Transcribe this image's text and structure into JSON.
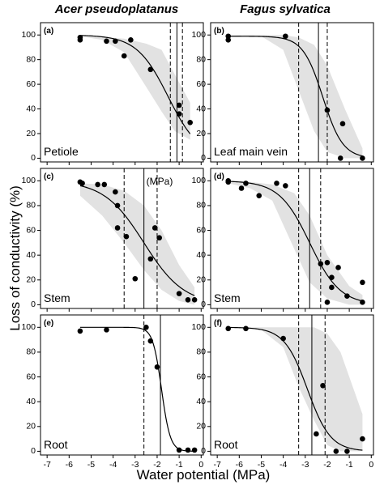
{
  "figure": {
    "column_titles": [
      "Acer pseudoplatanus",
      "Fagus sylvatica"
    ],
    "ylabel": "Loss of conductivity (%)",
    "xlabel": "Water potential (MPa)"
  },
  "chart_data": [
    {
      "id": "a",
      "type": "scatter",
      "letter": "(a)",
      "organ": "Petiole",
      "xlim": [
        -7.3,
        0.1
      ],
      "ylim": [
        -3,
        110
      ],
      "x_ticks": [
        -7,
        -6,
        -5,
        -4,
        -3,
        -2,
        -1,
        0
      ],
      "y_ticks": [
        0,
        20,
        40,
        60,
        80,
        100
      ],
      "points": [
        [
          -5.5,
          98
        ],
        [
          -5.5,
          96
        ],
        [
          -4.3,
          95
        ],
        [
          -3.9,
          95
        ],
        [
          -3.5,
          83
        ],
        [
          -3.2,
          96
        ],
        [
          -2.3,
          72
        ],
        [
          -1.0,
          43
        ],
        [
          -1.0,
          36
        ],
        [
          -0.5,
          29
        ]
      ],
      "fit": {
        "p50": -1.5,
        "slope": 1.4,
        "max": 100
      },
      "fit_range": [
        -5.5,
        -0.5
      ],
      "band": [
        [
          -5.5,
          99,
          99
        ],
        [
          -4.5,
          98,
          96
        ],
        [
          -3.5,
          97,
          86
        ],
        [
          -2.5,
          93,
          58
        ],
        [
          -1.8,
          88,
          38
        ],
        [
          -1.2,
          68,
          22
        ],
        [
          -0.5,
          45,
          15
        ]
      ],
      "vline_solid": -1.1,
      "vlines_dashed": [
        -1.4,
        -0.85
      ],
      "annotation": null
    },
    {
      "id": "b",
      "type": "scatter",
      "letter": "(b)",
      "organ": "Leaf main vein",
      "xlim": [
        -7.3,
        0.1
      ],
      "ylim": [
        -3,
        110
      ],
      "x_ticks": [
        -7,
        -6,
        -5,
        -4,
        -3,
        -2,
        -1,
        0
      ],
      "y_ticks": [
        0,
        20,
        40,
        60,
        80,
        100
      ],
      "points": [
        [
          -6.5,
          99
        ],
        [
          -6.5,
          96
        ],
        [
          -3.9,
          99
        ],
        [
          -2.0,
          39
        ],
        [
          -1.3,
          28
        ],
        [
          -1.4,
          0
        ],
        [
          -0.4,
          0
        ]
      ],
      "fit": {
        "p50": -2.2,
        "slope": 2.2,
        "max": 99
      },
      "fit_range": [
        -6.5,
        -0.4
      ],
      "band": [
        [
          -6.5,
          100,
          100
        ],
        [
          -5.0,
          100,
          99
        ],
        [
          -4.0,
          100,
          88
        ],
        [
          -3.3,
          98,
          55
        ],
        [
          -2.6,
          92,
          22
        ],
        [
          -2.0,
          75,
          5
        ],
        [
          -1.2,
          40,
          0
        ],
        [
          -0.4,
          8,
          0
        ]
      ],
      "vline_solid": -2.4,
      "vlines_dashed": [
        -3.3,
        -2.0
      ],
      "annotation": null
    },
    {
      "id": "c",
      "type": "scatter",
      "letter": "(c)",
      "organ": "Stem",
      "xlim": [
        -7.3,
        0.1
      ],
      "ylim": [
        -3,
        110
      ],
      "x_ticks": [
        -7,
        -6,
        -5,
        -4,
        -3,
        -2,
        -1,
        0
      ],
      "y_ticks": [
        0,
        20,
        40,
        60,
        80,
        100
      ],
      "points": [
        [
          -5.5,
          99
        ],
        [
          -5.4,
          98
        ],
        [
          -4.7,
          97
        ],
        [
          -4.4,
          97
        ],
        [
          -3.9,
          91
        ],
        [
          -3.8,
          80
        ],
        [
          -3.8,
          62
        ],
        [
          -3.4,
          55
        ],
        [
          -3.0,
          21
        ],
        [
          -2.3,
          37
        ],
        [
          -2.1,
          62
        ],
        [
          -1.9,
          54
        ],
        [
          -1.0,
          9
        ],
        [
          -0.6,
          4
        ],
        [
          -0.3,
          4
        ]
      ],
      "fit": {
        "p50": -2.6,
        "slope": 1.1,
        "max": 100
      },
      "fit_range": [
        -5.5,
        -0.3
      ],
      "band": [
        [
          -5.5,
          98,
          88
        ],
        [
          -4.5,
          97,
          72
        ],
        [
          -3.5,
          92,
          50
        ],
        [
          -2.6,
          80,
          28
        ],
        [
          -1.8,
          60,
          12
        ],
        [
          -1.0,
          32,
          3
        ],
        [
          -0.3,
          14,
          0
        ]
      ],
      "vline_solid": -2.6,
      "vlines_dashed": [
        -3.5,
        -2.0
      ],
      "annotation": "(MPa)"
    },
    {
      "id": "d",
      "type": "scatter",
      "letter": "(d)",
      "organ": "Stem",
      "xlim": [
        -7.3,
        0.1
      ],
      "ylim": [
        -3,
        110
      ],
      "x_ticks": [
        -7,
        -6,
        -5,
        -4,
        -3,
        -2,
        -1,
        0
      ],
      "y_ticks": [
        0,
        20,
        40,
        60,
        80,
        100
      ],
      "points": [
        [
          -6.5,
          100
        ],
        [
          -6.5,
          99
        ],
        [
          -5.9,
          94
        ],
        [
          -5.7,
          98
        ],
        [
          -5.1,
          88
        ],
        [
          -4.3,
          98
        ],
        [
          -3.9,
          96
        ],
        [
          -2.3,
          33
        ],
        [
          -2.0,
          34
        ],
        [
          -1.8,
          22
        ],
        [
          -1.5,
          30
        ],
        [
          -1.8,
          14
        ],
        [
          -1.1,
          7
        ],
        [
          -2.0,
          2
        ],
        [
          -0.4,
          18
        ],
        [
          -0.4,
          2
        ]
      ],
      "fit": {
        "p50": -2.8,
        "slope": 1.45,
        "max": 100
      },
      "fit_range": [
        -6.5,
        -0.4
      ],
      "band": [
        [
          -6.5,
          100,
          98
        ],
        [
          -5.5,
          99,
          94
        ],
        [
          -4.5,
          97,
          84
        ],
        [
          -3.5,
          90,
          45
        ],
        [
          -2.8,
          72,
          18
        ],
        [
          -2.0,
          40,
          5
        ],
        [
          -1.0,
          15,
          0
        ],
        [
          -0.4,
          8,
          0
        ]
      ],
      "vline_solid": -2.8,
      "vlines_dashed": [
        -3.3,
        -2.3
      ],
      "annotation": null
    },
    {
      "id": "e",
      "type": "scatter",
      "letter": "(e)",
      "organ": "Root",
      "xlim": [
        -7.3,
        0.1
      ],
      "ylim": [
        -3,
        110
      ],
      "x_ticks": [
        -7,
        -6,
        -5,
        -4,
        -3,
        -2,
        -1,
        0
      ],
      "y_ticks": [
        0,
        20,
        40,
        60,
        80,
        100
      ],
      "points": [
        [
          -5.5,
          97
        ],
        [
          -4.3,
          98
        ],
        [
          -2.5,
          100
        ],
        [
          -2.3,
          89
        ],
        [
          -2.0,
          68
        ],
        [
          -1.0,
          1
        ],
        [
          -0.6,
          1
        ],
        [
          -0.3,
          1
        ]
      ],
      "fit": {
        "p50": -1.8,
        "slope": 5,
        "max": 100
      },
      "fit_range": [
        -5.5,
        -0.3
      ],
      "band": null,
      "vline_solid": -1.85,
      "vlines_dashed": [
        -2.6
      ],
      "annotation": null
    },
    {
      "id": "f",
      "type": "scatter",
      "letter": "(f)",
      "organ": "Root",
      "xlim": [
        -7.3,
        0.1
      ],
      "ylim": [
        -3,
        110
      ],
      "x_ticks": [
        -7,
        -6,
        -5,
        -4,
        -3,
        -2,
        -1,
        0
      ],
      "y_ticks": [
        0,
        20,
        40,
        60,
        80,
        100
      ],
      "points": [
        [
          -6.5,
          99
        ],
        [
          -5.7,
          99
        ],
        [
          -4.0,
          91
        ],
        [
          -2.2,
          53
        ],
        [
          -2.5,
          14
        ],
        [
          -1.6,
          0
        ],
        [
          -1.1,
          0
        ],
        [
          -0.4,
          10
        ]
      ],
      "fit": {
        "p50": -2.9,
        "slope": 1.9,
        "max": 100
      },
      "fit_range": [
        -6.5,
        -0.4
      ],
      "band": [
        [
          -6.5,
          100,
          100
        ],
        [
          -5.0,
          100,
          98
        ],
        [
          -4.0,
          100,
          84
        ],
        [
          -3.3,
          100,
          52
        ],
        [
          -2.6,
          100,
          25
        ],
        [
          -2.0,
          95,
          5
        ],
        [
          -1.4,
          80,
          0
        ],
        [
          -0.4,
          30,
          0
        ]
      ],
      "vline_solid": -2.7,
      "vlines_dashed": [
        -3.3,
        -2.1
      ],
      "annotation": null
    }
  ]
}
